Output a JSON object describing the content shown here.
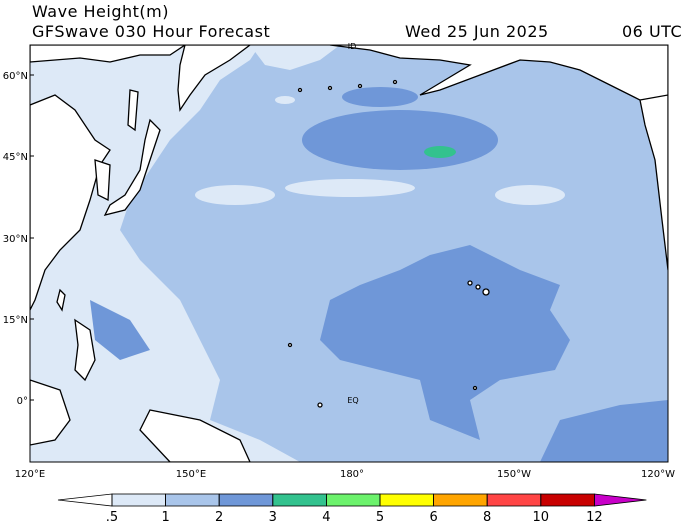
{
  "header": {
    "title": "Wave Height(m)",
    "subtitle": "GFSwave 030 Hour Forecast",
    "date": "Wed 25 Jun 2025",
    "time": "06 UTC"
  },
  "map": {
    "lat_labels": [
      "60°N",
      "45°N",
      "30°N",
      "15°N",
      "0°"
    ],
    "lon_labels": [
      "120°E",
      "150°E",
      "180°",
      "150°W",
      "120°W"
    ],
    "place_labels": [
      "ID",
      "EQ"
    ]
  },
  "colorbar": {
    "ticks": [
      {
        "value": 0.5,
        "label": ".5"
      },
      1,
      2,
      3,
      4,
      5,
      6,
      8,
      10,
      12
    ],
    "colors": [
      "#ffffff",
      "#dde9f7",
      "#a9c5ea",
      "#6f97d8",
      "#33c28e",
      "#6cf26c",
      "#ffff00",
      "#ffa500",
      "#ff4545",
      "#c80000",
      "#c800c8"
    ]
  }
}
